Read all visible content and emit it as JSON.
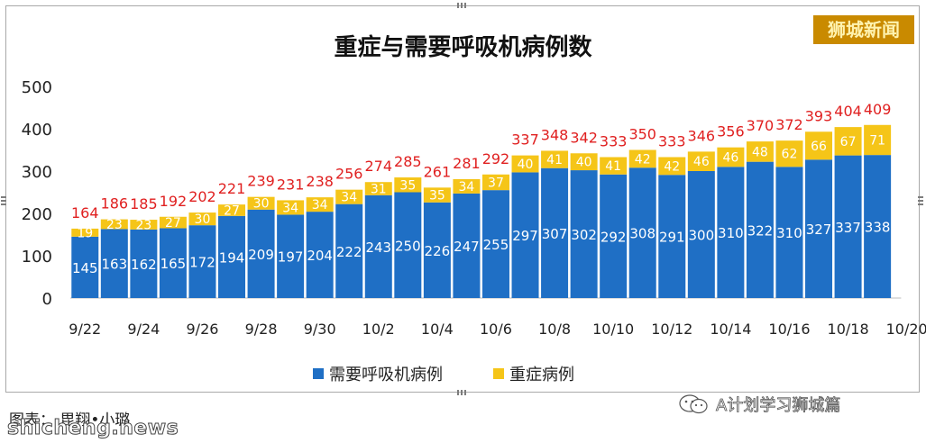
{
  "title": "重症与需要呼吸机病例数",
  "brand": "狮城新闻",
  "credit": "图表： 毘翔•小璐",
  "watermark_left": "shicheng.news",
  "watermark_right": "A计划学习狮城篇",
  "watermark_icon": "wechat-icon",
  "colors": {
    "ventilator": "#1f6fc5",
    "severe": "#f5c518",
    "total_label": "#e02020",
    "bar_label": "#ffffff"
  },
  "chart_data": {
    "type": "bar",
    "stacked": true,
    "title": "重症与需要呼吸机病例数",
    "dates": [
      "9/22",
      "9/23",
      "9/24",
      "9/25",
      "9/26",
      "9/27",
      "9/28",
      "9/29",
      "9/30",
      "10/1",
      "10/2",
      "10/3",
      "10/4",
      "10/5",
      "10/6",
      "10/7",
      "10/8",
      "10/9",
      "10/10",
      "10/11",
      "10/12",
      "10/13",
      "10/14",
      "10/15",
      "10/16",
      "10/17",
      "10/18",
      "10/19"
    ],
    "x_tick_labels": [
      "9/22",
      "9/24",
      "9/26",
      "9/28",
      "9/30",
      "10/2",
      "10/4",
      "10/6",
      "10/8",
      "10/10",
      "10/12",
      "10/14",
      "10/16",
      "10/18",
      "10/20"
    ],
    "y_ticks": [
      0,
      100,
      200,
      300,
      400,
      500
    ],
    "ylim": [
      0,
      500
    ],
    "series": [
      {
        "name": "需要呼吸机病例",
        "color": "#1f6fc5",
        "values": [
          145,
          163,
          162,
          165,
          172,
          194,
          209,
          197,
          204,
          222,
          243,
          250,
          226,
          247,
          255,
          297,
          307,
          302,
          292,
          308,
          291,
          300,
          310,
          322,
          310,
          327,
          337,
          338
        ]
      },
      {
        "name": "重症病例",
        "color": "#f5c518",
        "values": [
          19,
          23,
          23,
          27,
          30,
          27,
          30,
          34,
          34,
          34,
          31,
          35,
          35,
          34,
          37,
          40,
          41,
          40,
          41,
          42,
          42,
          46,
          46,
          48,
          62,
          66,
          67,
          71
        ]
      }
    ],
    "totals": [
      164,
      186,
      185,
      192,
      202,
      221,
      239,
      231,
      238,
      256,
      274,
      285,
      261,
      281,
      292,
      337,
      348,
      342,
      333,
      350,
      333,
      346,
      356,
      370,
      372,
      393,
      404,
      409
    ],
    "grid": false,
    "legend_position": "bottom"
  }
}
